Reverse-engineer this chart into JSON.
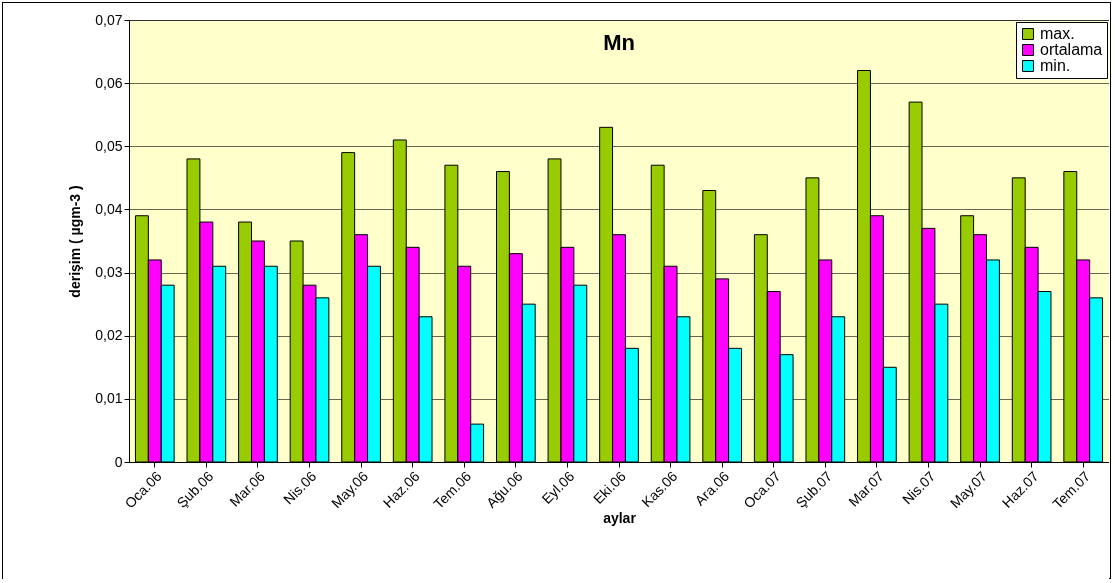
{
  "chart_data": {
    "type": "bar",
    "title": "Mn",
    "xlabel": "aylar",
    "ylabel": "derişim ( µgm-3 )",
    "categories": [
      "Oca.06",
      "Şub.06",
      "Mar.06",
      "Nis.06",
      "May.06",
      "Haz.06",
      "Tem.06",
      "Ağu.06",
      "Eyl.06",
      "Eki.06",
      "Kas.06",
      "Ara.06",
      "Oca.07",
      "Şub.07",
      "Mar.07",
      "Nis.07",
      "May.07",
      "Haz.07",
      "Tem.07"
    ],
    "series": [
      {
        "name": "max.",
        "color": "#99cc00",
        "values": [
          0.039,
          0.048,
          0.038,
          0.035,
          0.049,
          0.051,
          0.047,
          0.046,
          0.048,
          0.053,
          0.047,
          0.043,
          0.036,
          0.045,
          0.062,
          0.057,
          0.039,
          0.045,
          0.046
        ]
      },
      {
        "name": "ortalama",
        "color": "#ff00ff",
        "values": [
          0.032,
          0.038,
          0.035,
          0.028,
          0.036,
          0.034,
          0.031,
          0.033,
          0.034,
          0.036,
          0.031,
          0.029,
          0.027,
          0.032,
          0.039,
          0.037,
          0.036,
          0.034,
          0.032
        ]
      },
      {
        "name": "min.",
        "color": "#00ffff",
        "values": [
          0.028,
          0.031,
          0.031,
          0.026,
          0.031,
          0.023,
          0.006,
          0.025,
          0.028,
          0.018,
          0.023,
          0.018,
          0.017,
          0.023,
          0.015,
          0.025,
          0.032,
          0.027,
          0.026
        ]
      }
    ],
    "ylim": [
      0,
      0.07
    ],
    "yticks": [
      0,
      {
        "value": 0.01,
        "label": "0,01"
      },
      {
        "value": 0.02,
        "label": "0,02"
      },
      {
        "value": 0.03,
        "label": "0,03"
      },
      {
        "value": 0.04,
        "label": "0,04"
      },
      {
        "value": 0.05,
        "label": "0,05"
      },
      {
        "value": 0.06,
        "label": "0,06"
      },
      {
        "value": 0.07,
        "label": "0,07"
      }
    ],
    "grid": "y",
    "legend": "top right"
  }
}
